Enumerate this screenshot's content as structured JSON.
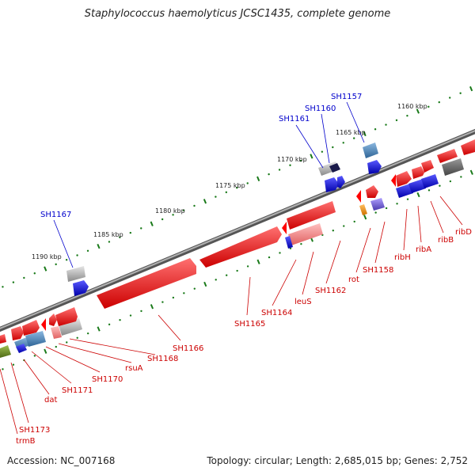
{
  "title": "Staphylococcus haemolyticus JCSC1435, complete genome",
  "accession_label": "Accession: NC_007168",
  "summary_label": "Topology: circular; Length: 2,685,015 bp; Genes: 2,752",
  "colors": {
    "forward_label": "#0000cc",
    "reverse_label": "#cc0000",
    "backbone": "#777777",
    "tick": "#1a7a1a",
    "feature_red": "#ff0000",
    "feature_blue": "#0000ff",
    "feature_gray": "#aaaaaa",
    "feature_pink": "#ff8080",
    "feature_steel": "#4682b4",
    "feature_olive": "#6b8e23",
    "feature_orange": "#ff8c00",
    "feature_purple": "#6a5acd",
    "feature_dark_gray": "#555555"
  },
  "kbp_ticks": [
    "1160 kbp",
    "1165 kbp",
    "1170 kbp",
    "1175 kbp",
    "1180 kbp",
    "1185 kbp",
    "1190 kbp"
  ],
  "forward_labels": [
    "SH1157",
    "SH1160",
    "SH1161",
    "SH1167"
  ],
  "reverse_labels": [
    "ribD",
    "ribB",
    "ribA",
    "ribH",
    "SH1158",
    "rot",
    "SH1162",
    "leuS",
    "SH1164",
    "SH1165",
    "SH1166",
    "SH1168",
    "rsuA",
    "SH1170",
    "SH1171",
    "dat",
    "SH1173",
    "trmB"
  ]
}
